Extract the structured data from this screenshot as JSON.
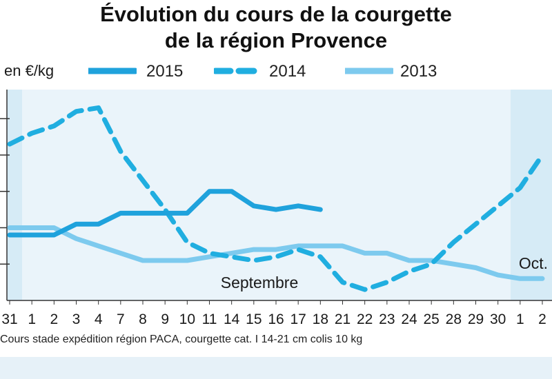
{
  "chart_data": {
    "type": "line",
    "title": "Évolution du cours de la courgette de la région Provence",
    "title_lines": [
      "Évolution du cours de la courgette",
      "de la région Provence"
    ],
    "unit_label": "en €/kg",
    "categories": [
      "31",
      "1",
      "2",
      "3",
      "4",
      "7",
      "8",
      "9",
      "10",
      "11",
      "14",
      "15",
      "16",
      "17",
      "18",
      "21",
      "22",
      "23",
      "24",
      "25",
      "28",
      "29",
      "30",
      "1",
      "2"
    ],
    "annotations": [
      "Septembre",
      "Oct."
    ],
    "footnote": "Cours stade expédition région PACA, courgette cat. I 14-21 cm colis 10 kg",
    "y_axis": "unlabeled",
    "grid": false,
    "legend_position": "top",
    "series": [
      {
        "name": "2015",
        "style": "solid",
        "color": "#1fa2dc",
        "values": [
          1.8,
          1.8,
          1.8,
          2.1,
          2.1,
          2.4,
          2.4,
          2.4,
          2.4,
          3.0,
          3.0,
          2.6,
          2.5,
          2.6,
          2.5,
          null,
          null,
          null,
          null,
          null,
          null,
          null,
          null,
          null,
          null
        ]
      },
      {
        "name": "2014",
        "style": "dashed",
        "color": "#20aee0",
        "values": [
          4.3,
          4.6,
          4.8,
          5.2,
          5.3,
          4.1,
          3.3,
          2.5,
          1.6,
          1.3,
          1.2,
          1.1,
          1.2,
          1.4,
          1.2,
          0.5,
          0.3,
          0.5,
          0.8,
          1.0,
          1.6,
          2.1,
          2.6,
          3.1,
          4.0
        ]
      },
      {
        "name": "2013",
        "style": "solid",
        "color": "#7dcaee",
        "values": [
          2.0,
          2.0,
          2.0,
          1.7,
          1.5,
          1.3,
          1.1,
          1.1,
          1.1,
          1.2,
          1.3,
          1.4,
          1.4,
          1.5,
          1.5,
          1.5,
          1.3,
          1.3,
          1.1,
          1.1,
          1.0,
          0.9,
          0.7,
          0.6,
          0.6
        ]
      }
    ]
  },
  "colors": {
    "plot_bg": "#eaf4fa",
    "shade_bg": "#d6ebf6"
  }
}
